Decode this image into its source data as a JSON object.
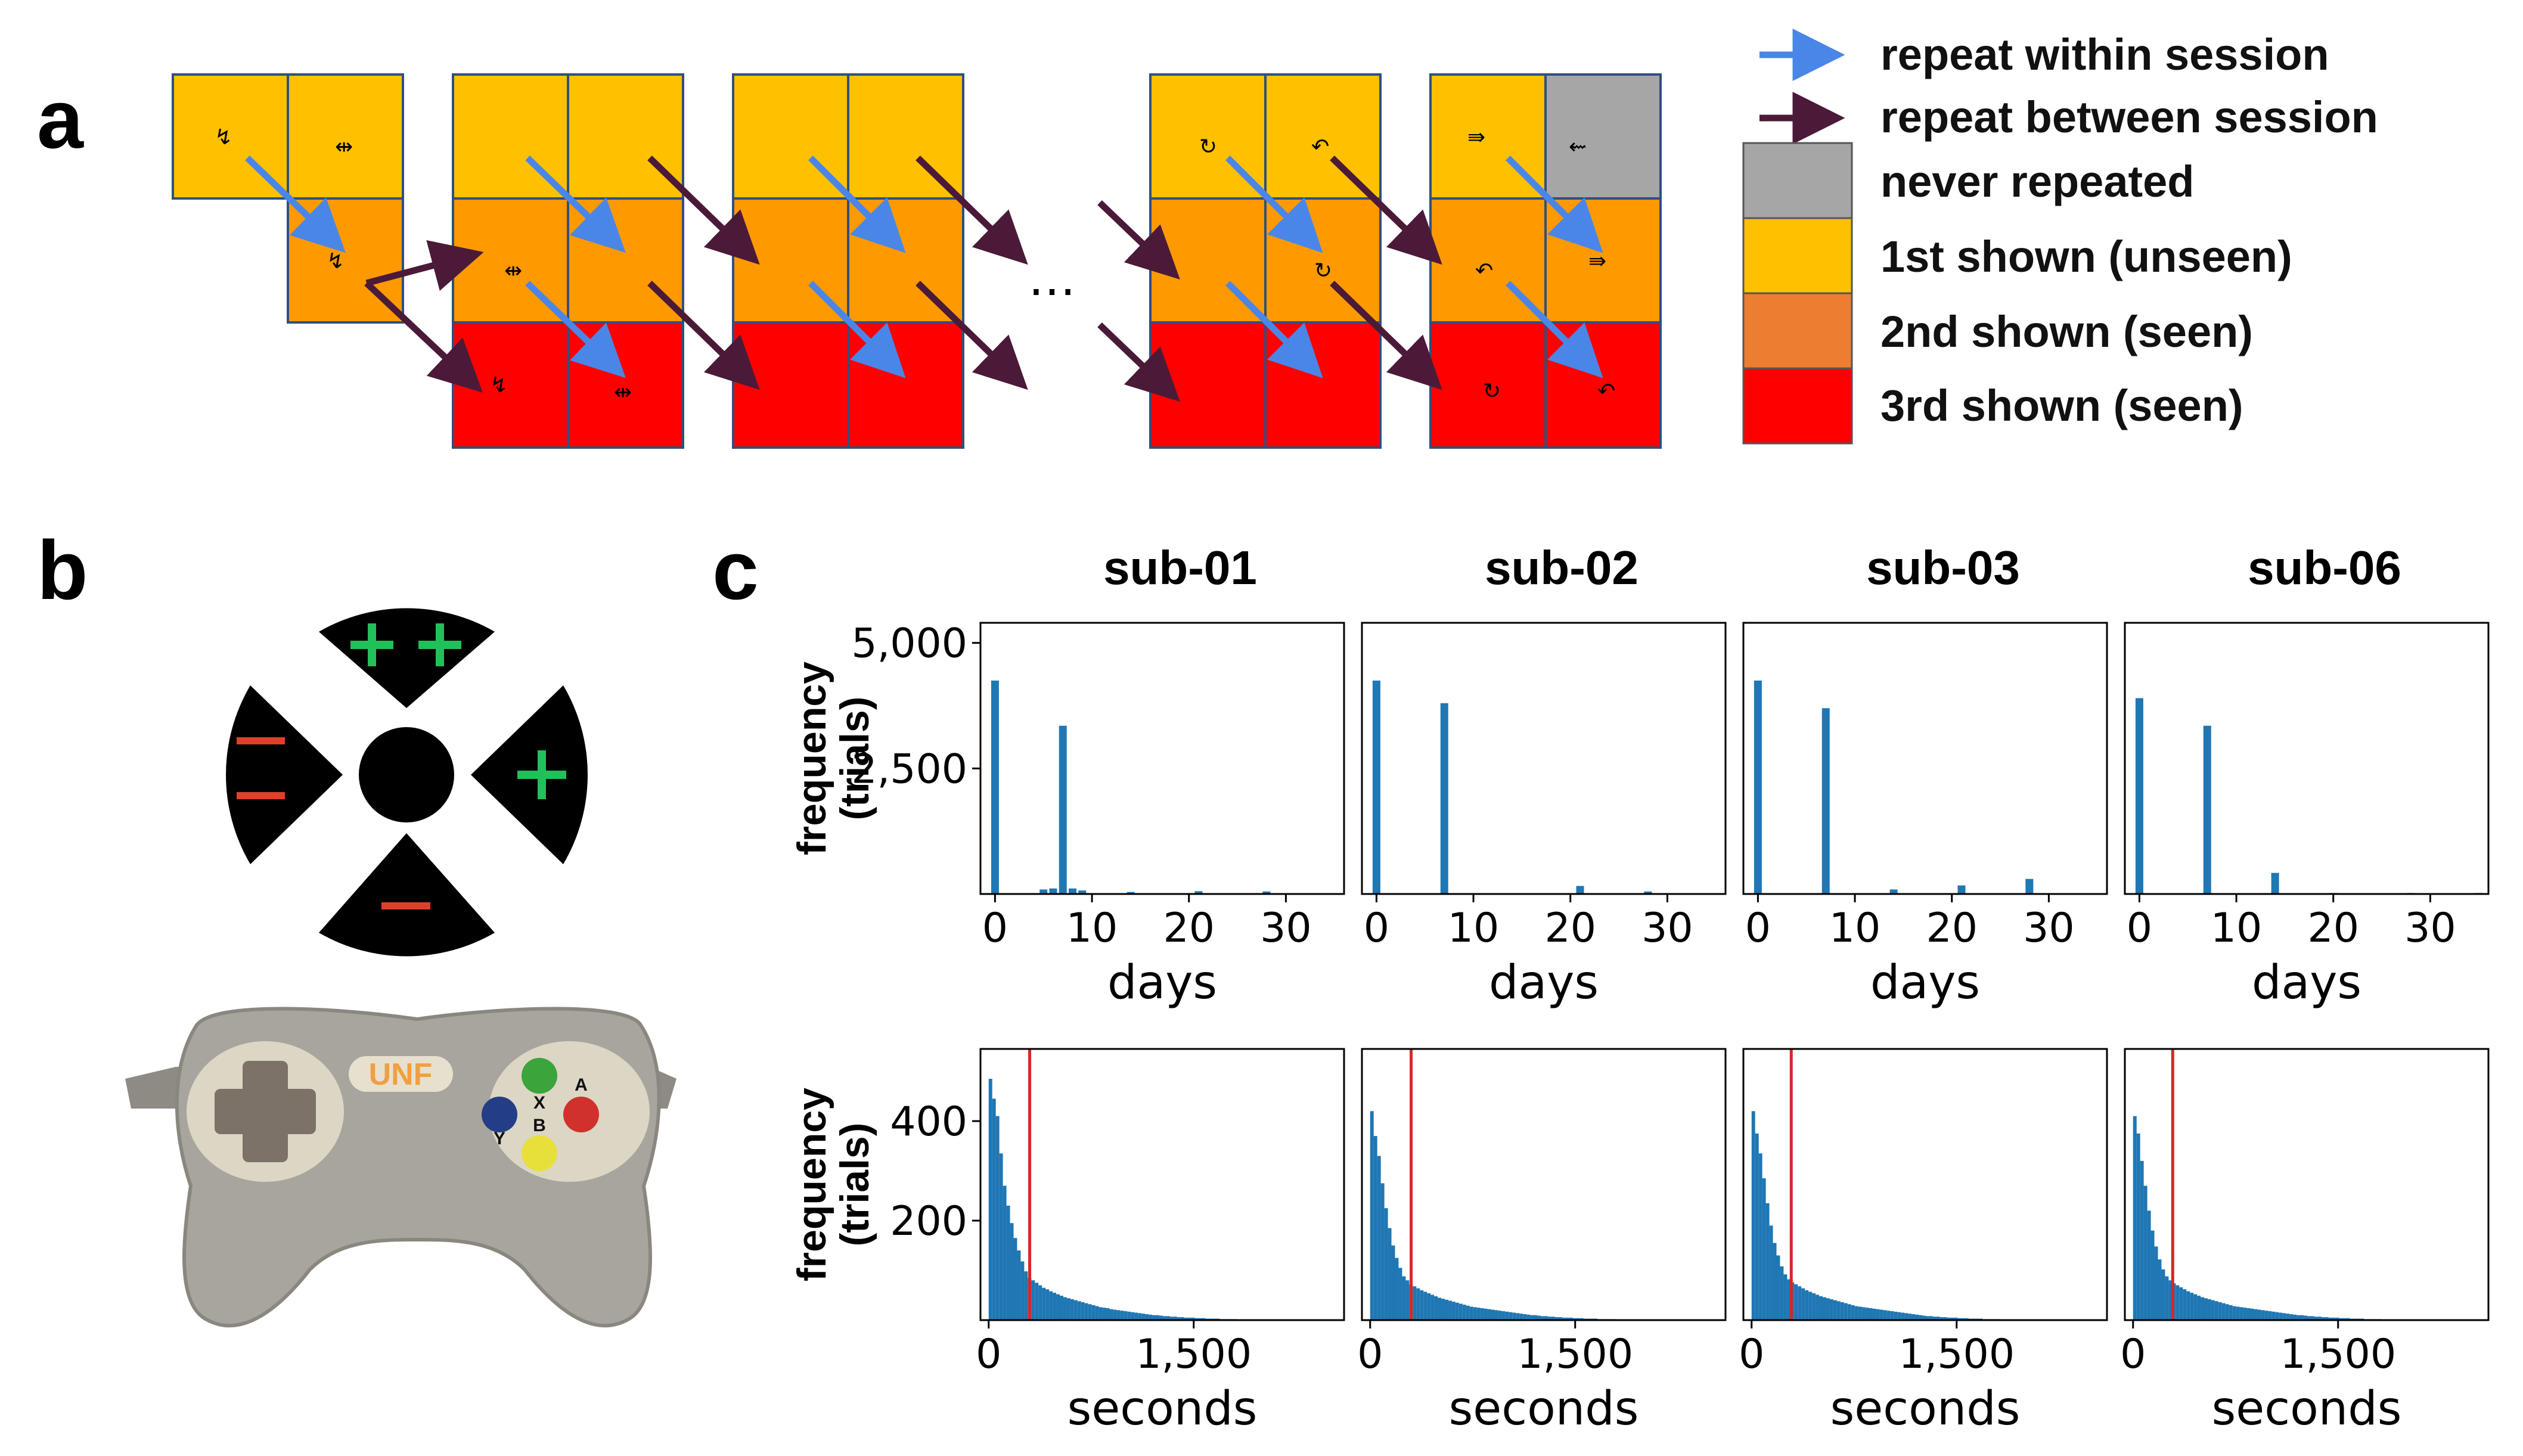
{
  "panel_labels": {
    "a": "a",
    "b": "b",
    "c": "c"
  },
  "legend": {
    "within": "repeat within session",
    "between": "repeat between session",
    "never": "never repeated",
    "first": "1st shown (unseen)",
    "second": "2nd shown (seen)",
    "third": "3rd shown (seen)"
  },
  "ellipsis": "…",
  "colors": {
    "first": "#FFC000",
    "second": "#FF9900",
    "third": "#FF0000",
    "second_legend": "#ED7D31",
    "never": "#A6A6A6",
    "within_arrow": "#4A86E8",
    "between_arrow": "#4B1A38",
    "bar": "#1F77B4",
    "median_line": "#D62728",
    "gamepad_body": "#A8A59E",
    "button_a": "#D0312D",
    "button_b": "#E8E03A",
    "button_x": "#3BA43B",
    "button_y": "#233E86",
    "gamepad_logo": "#F0A040",
    "dpad_plus": "#22C05A",
    "dpad_minus": "#E04028"
  },
  "gamepad": {
    "logo": "UNF",
    "buttons": {
      "a": "A",
      "b": "B",
      "x": "X",
      "y": "Y"
    }
  },
  "chart_data": [
    {
      "type": "bar",
      "title": "sub-01",
      "xlabel": "days",
      "ylabel": "frequency (trials)",
      "xlim": [
        -1.5,
        36
      ],
      "ylim": [
        0,
        5400
      ],
      "xticks": [
        0,
        10,
        20,
        30
      ],
      "yticks": [
        2500,
        5000
      ],
      "ytick_labels": [
        "2,500",
        "5,000"
      ],
      "x": [
        0,
        5,
        6,
        7,
        8,
        9,
        14,
        21,
        28
      ],
      "values": [
        4250,
        90,
        110,
        3350,
        110,
        70,
        40,
        55,
        50
      ]
    },
    {
      "type": "bar",
      "title": "sub-02",
      "xlabel": "days",
      "ylabel": "",
      "xlim": [
        -1.5,
        36
      ],
      "ylim": [
        0,
        5400
      ],
      "xticks": [
        0,
        10,
        20,
        30
      ],
      "yticks": [],
      "x": [
        0,
        7,
        21,
        28
      ],
      "values": [
        4250,
        3800,
        160,
        50
      ]
    },
    {
      "type": "bar",
      "title": "sub-03",
      "xlabel": "days",
      "ylabel": "",
      "xlim": [
        -1.5,
        36
      ],
      "ylim": [
        0,
        5400
      ],
      "xticks": [
        0,
        10,
        20,
        30
      ],
      "yticks": [],
      "x": [
        0,
        7,
        14,
        21,
        28
      ],
      "values": [
        4250,
        3700,
        90,
        170,
        300
      ]
    },
    {
      "type": "bar",
      "title": "sub-06",
      "xlabel": "days",
      "ylabel": "",
      "xlim": [
        -1.5,
        36
      ],
      "ylim": [
        0,
        5400
      ],
      "xticks": [
        0,
        10,
        20,
        30
      ],
      "yticks": [],
      "x": [
        0,
        7,
        14,
        20,
        28,
        35
      ],
      "values": [
        3900,
        3350,
        420,
        20,
        20,
        20
      ]
    },
    {
      "type": "bar",
      "title": "",
      "xlabel": "seconds",
      "ylabel": "frequency (trials)",
      "xlim": [
        -60,
        2600
      ],
      "ylim": [
        0,
        545
      ],
      "xticks": [
        0,
        1500
      ],
      "xtick_labels": [
        "0",
        "1,500"
      ],
      "yticks": [
        200,
        400
      ],
      "ytick_labels": [
        "200",
        "400"
      ],
      "median": 300,
      "bin_width": 26,
      "values": [
        485,
        445,
        410,
        335,
        270,
        230,
        195,
        165,
        140,
        118,
        98,
        85,
        80,
        75,
        70,
        65,
        62,
        58,
        55,
        52,
        49,
        46,
        44,
        42,
        40,
        38,
        36,
        34,
        32,
        30,
        28,
        26,
        25,
        24,
        22,
        21,
        20,
        19,
        18,
        17,
        16,
        15,
        14,
        13,
        12,
        11,
        10,
        10,
        9,
        8,
        8,
        7,
        7,
        6,
        6,
        5,
        5,
        5,
        4,
        4,
        4,
        3,
        3,
        3,
        3,
        2,
        2,
        2,
        2,
        2,
        1,
        1,
        1,
        1,
        1,
        1,
        1,
        1,
        1,
        1,
        1,
        1
      ]
    },
    {
      "type": "bar",
      "title": "",
      "xlabel": "seconds",
      "ylabel": "",
      "xlim": [
        -60,
        2600
      ],
      "ylim": [
        0,
        545
      ],
      "xticks": [
        0,
        1500
      ],
      "xtick_labels": [
        "0",
        "1,500"
      ],
      "yticks": [],
      "median": 300,
      "bin_width": 26,
      "values": [
        420,
        370,
        330,
        275,
        225,
        185,
        150,
        125,
        105,
        88,
        80,
        72,
        68,
        64,
        60,
        57,
        54,
        51,
        48,
        45,
        43,
        41,
        39,
        37,
        35,
        33,
        31,
        29,
        27,
        26,
        25,
        24,
        23,
        22,
        21,
        20,
        19,
        18,
        17,
        16,
        15,
        14,
        13,
        12,
        11,
        10,
        10,
        9,
        8,
        8,
        7,
        7,
        6,
        6,
        5,
        5,
        5,
        4,
        4,
        4,
        3,
        3,
        3,
        3,
        2,
        2,
        2,
        2,
        2,
        1,
        1,
        1,
        1,
        1,
        1,
        1,
        1,
        1,
        1,
        1,
        1,
        1
      ]
    },
    {
      "type": "bar",
      "title": "",
      "xlabel": "seconds",
      "ylabel": "",
      "xlim": [
        -60,
        2600
      ],
      "ylim": [
        0,
        545
      ],
      "xticks": [
        0,
        1500
      ],
      "xtick_labels": [
        "0",
        "1,500"
      ],
      "yticks": [],
      "median": 290,
      "bin_width": 26,
      "values": [
        420,
        375,
        335,
        285,
        235,
        190,
        155,
        130,
        108,
        92,
        82,
        76,
        72,
        68,
        64,
        60,
        57,
        54,
        51,
        48,
        46,
        44,
        42,
        40,
        38,
        36,
        34,
        32,
        30,
        28,
        27,
        26,
        25,
        24,
        23,
        22,
        21,
        20,
        19,
        18,
        17,
        16,
        15,
        14,
        13,
        12,
        11,
        10,
        9,
        8,
        8,
        7,
        7,
        6,
        6,
        5,
        5,
        5,
        4,
        4,
        4,
        3,
        3,
        3,
        3,
        2,
        2,
        2,
        2,
        2,
        1,
        1,
        1,
        1,
        1,
        1,
        1,
        1,
        1,
        1,
        1,
        1
      ]
    },
    {
      "type": "bar",
      "title": "",
      "xlabel": "seconds",
      "ylabel": "",
      "xlim": [
        -60,
        2600
      ],
      "ylim": [
        0,
        545
      ],
      "xticks": [
        0,
        1500
      ],
      "xtick_labels": [
        "0",
        "1,500"
      ],
      "yticks": [],
      "median": 290,
      "bin_width": 26,
      "values": [
        410,
        375,
        320,
        270,
        220,
        180,
        148,
        122,
        102,
        88,
        80,
        74,
        70,
        66,
        62,
        58,
        55,
        52,
        49,
        46,
        44,
        42,
        40,
        38,
        36,
        34,
        32,
        30,
        28,
        27,
        26,
        25,
        24,
        23,
        22,
        21,
        20,
        19,
        18,
        17,
        16,
        15,
        14,
        13,
        12,
        11,
        10,
        10,
        9,
        8,
        8,
        7,
        7,
        6,
        6,
        5,
        5,
        5,
        4,
        4,
        4,
        3,
        3,
        3,
        3,
        2,
        2,
        2,
        2,
        2,
        1,
        1,
        1,
        1,
        1,
        1,
        1,
        1,
        1,
        1,
        1,
        1
      ]
    }
  ]
}
